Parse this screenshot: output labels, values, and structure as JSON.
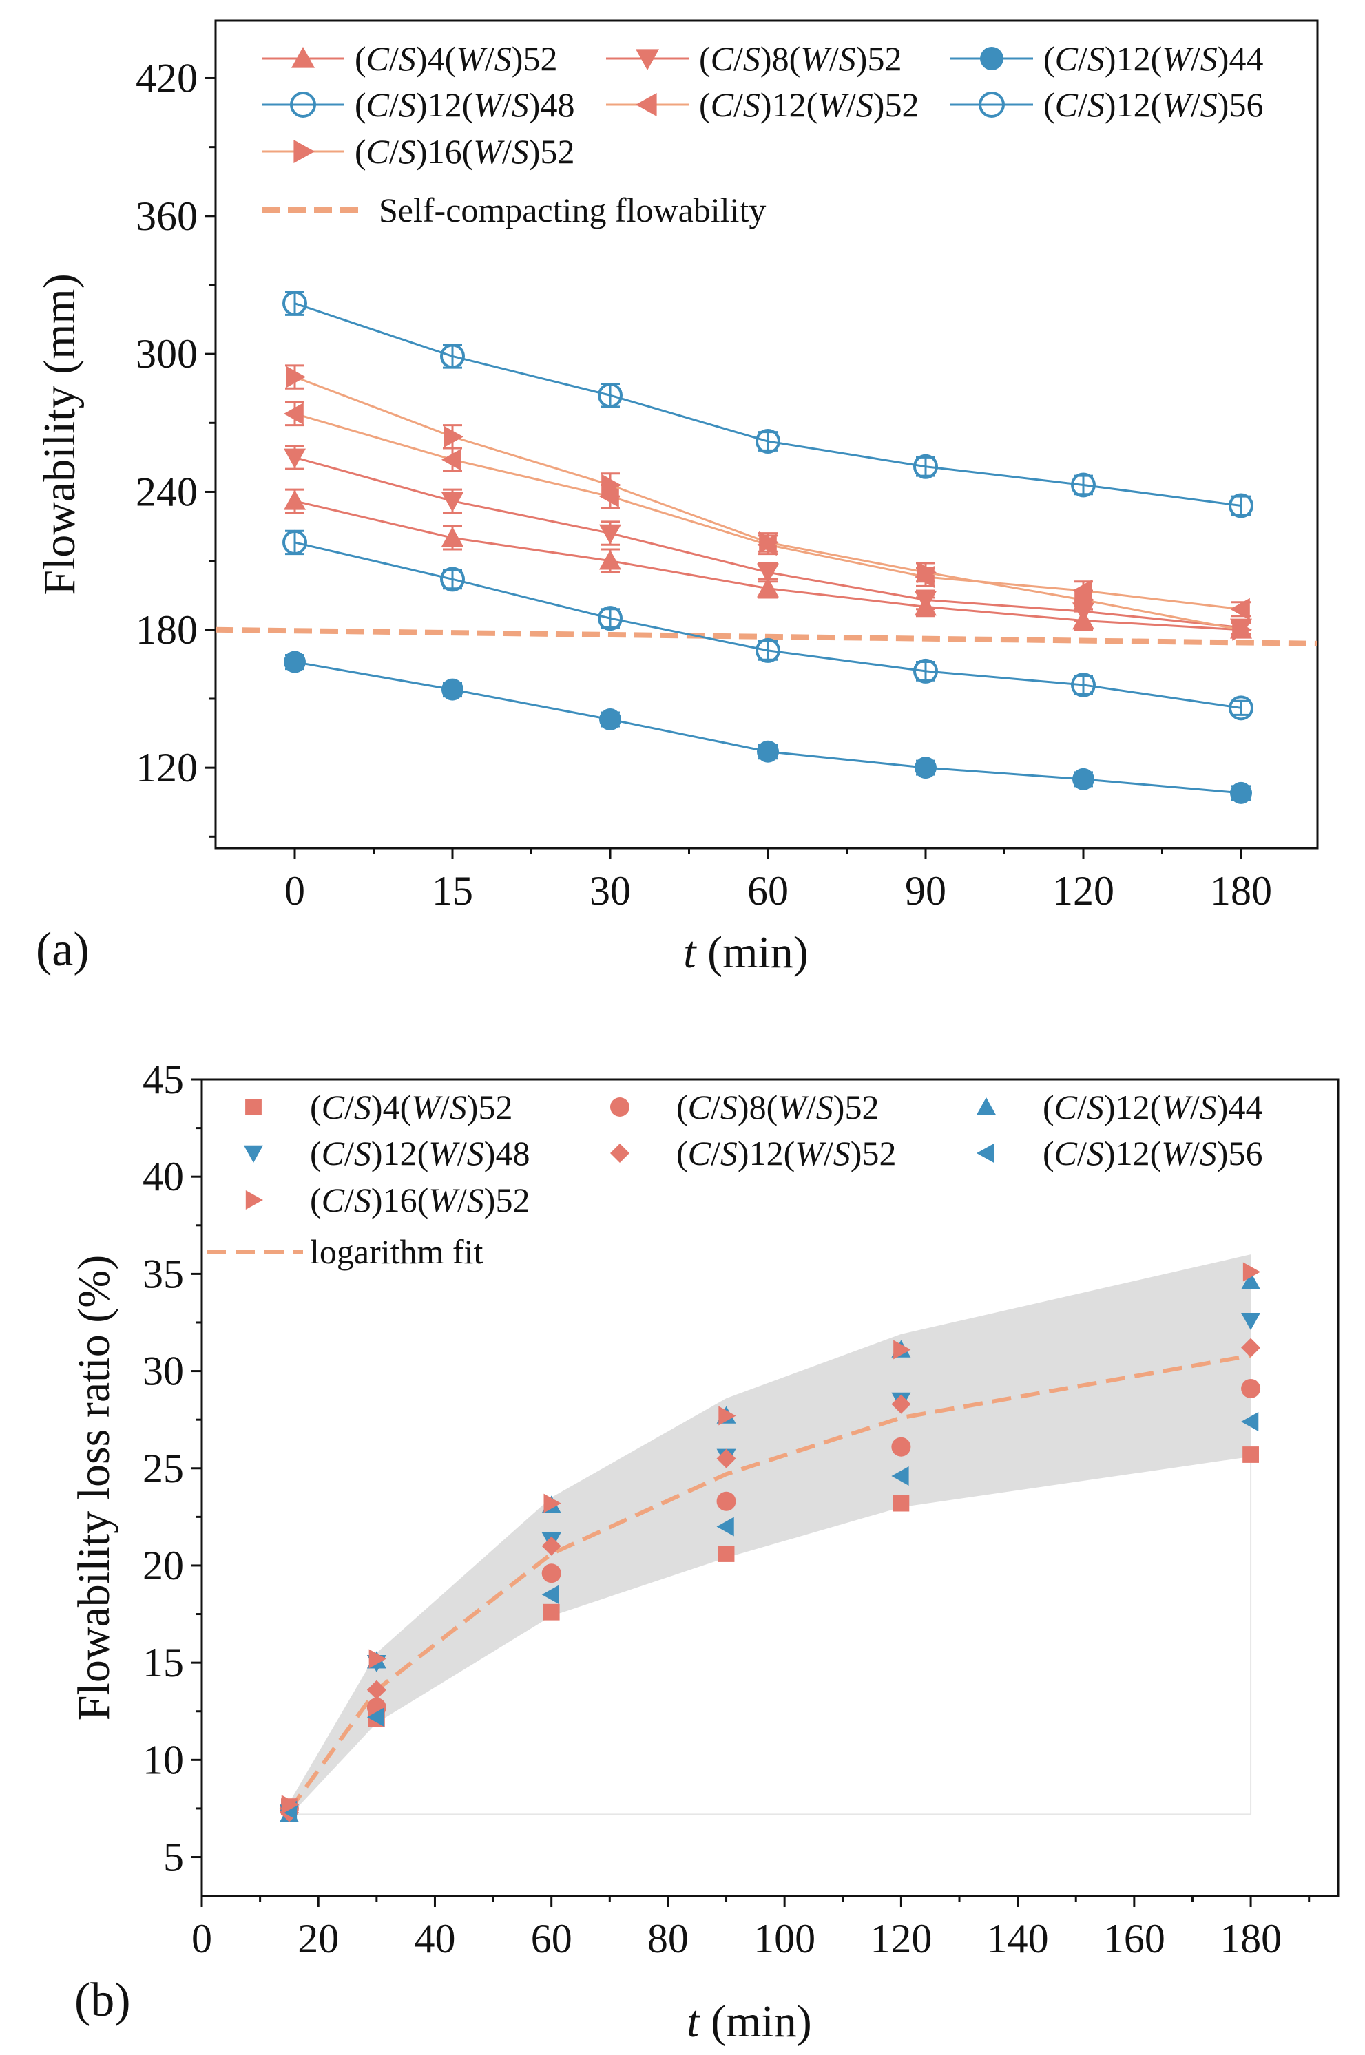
{
  "chart_data": [
    {
      "panel_label": "(a)",
      "type": "line",
      "xlabel_italic": "t",
      "xlabel_rest": " (min)",
      "ylabel": "Flowability (mm)",
      "categories": [
        "0",
        "15",
        "30",
        "60",
        "90",
        "120",
        "180"
      ],
      "ylim": [
        85,
        445
      ],
      "yticks": [
        120,
        180,
        240,
        300,
        360,
        420
      ],
      "grid": false,
      "legend_position": "top",
      "series": [
        {
          "prefix": "(C/S)4(W/S)52",
          "name": "(C/S)4(W/S)52",
          "marker": "triangle-up",
          "filled": true,
          "color": "#e4786c",
          "values": [
            236,
            220,
            210,
            198,
            190,
            184,
            180
          ],
          "err": [
            5,
            5,
            5,
            4,
            4,
            4,
            3
          ]
        },
        {
          "name": "(C/S)8(W/S)52",
          "marker": "triangle-down",
          "filled": true,
          "color": "#e4786c",
          "values": [
            255,
            236,
            222,
            205,
            193,
            188,
            181
          ],
          "err": [
            5,
            5,
            5,
            4,
            4,
            4,
            3
          ]
        },
        {
          "name": "(C/S)12(W/S)44",
          "marker": "circle",
          "filled": true,
          "color": "#3d8ebd",
          "values": [
            166,
            154,
            141,
            127,
            120,
            115,
            109
          ],
          "err": [
            3,
            3,
            3,
            3,
            3,
            3,
            3
          ]
        },
        {
          "name": "(C/S)12(W/S)48",
          "marker": "circle",
          "filled": false,
          "color": "#3d8ebd",
          "values": [
            218,
            202,
            185,
            171,
            162,
            156,
            146
          ],
          "err": [
            5,
            4,
            4,
            4,
            4,
            4,
            3
          ]
        },
        {
          "name": "(C/S)12(W/S)52",
          "marker": "triangle-left",
          "filled": true,
          "color": "#e4786c",
          "line_color": "#f0a47e",
          "values": [
            274,
            254,
            238,
            217,
            203,
            197,
            189
          ],
          "err": [
            5,
            5,
            5,
            4,
            4,
            4,
            3
          ]
        },
        {
          "name": "(C/S)12(W/S)56",
          "marker": "circle",
          "filled": false,
          "color": "#3d8ebd",
          "values": [
            322,
            299,
            282,
            262,
            251,
            243,
            234
          ],
          "err": [
            5,
            5,
            5,
            4,
            4,
            4,
            4
          ]
        },
        {
          "name": "(C/S)16(W/S)52",
          "marker": "triangle-right",
          "filled": true,
          "color": "#e4786c",
          "line_color": "#f0a47e",
          "values": [
            290,
            264,
            243,
            218,
            205,
            193,
            180
          ],
          "err": [
            5,
            5,
            5,
            4,
            4,
            4,
            3
          ]
        }
      ],
      "reference_line": {
        "label": "Self-compacting flowability",
        "start": 180,
        "end": 174,
        "color": "#f0a47e"
      }
    },
    {
      "panel_label": "(b)",
      "type": "scatter",
      "xlabel_italic": "t",
      "xlabel_rest": " (min)",
      "ylabel": "Flowability loss ratio (%)",
      "xlim": [
        0,
        195
      ],
      "ylim": [
        3,
        45
      ],
      "xticks": [
        0,
        20,
        40,
        60,
        80,
        100,
        120,
        140,
        160,
        180
      ],
      "yticks": [
        5,
        10,
        15,
        20,
        25,
        30,
        35,
        40,
        45
      ],
      "x": [
        15,
        30,
        60,
        90,
        120,
        180
      ],
      "grid": false,
      "legend_position": "top",
      "series": [
        {
          "name": "(C/S)4(W/S)52",
          "marker": "square",
          "color": "#e4786c",
          "values": [
            7.6,
            12.1,
            17.6,
            20.6,
            23.2,
            25.7
          ]
        },
        {
          "name": "(C/S)8(W/S)52",
          "marker": "circle",
          "color": "#e4786c",
          "values": [
            7.5,
            12.7,
            19.6,
            23.3,
            26.1,
            29.1
          ]
        },
        {
          "name": "(C/S)12(W/S)44",
          "marker": "triangle-up",
          "color": "#3d8ebd",
          "values": [
            7.2,
            15.1,
            23.1,
            27.7,
            31.1,
            34.6
          ]
        },
        {
          "name": "(C/S)12(W/S)48",
          "marker": "triangle-down",
          "color": "#3d8ebd",
          "values": [
            7.3,
            15.0,
            21.3,
            25.6,
            28.5,
            32.6
          ]
        },
        {
          "name": "(C/S)12(W/S)52",
          "marker": "diamond",
          "color": "#e4786c",
          "values": [
            7.3,
            13.6,
            21.0,
            25.5,
            28.3,
            31.2
          ]
        },
        {
          "name": "(C/S)12(W/S)56",
          "marker": "triangle-left",
          "color": "#3d8ebd",
          "values": [
            7.4,
            12.2,
            18.5,
            22.0,
            24.6,
            27.4
          ]
        },
        {
          "name": "(C/S)16(W/S)52",
          "marker": "triangle-right",
          "color": "#e4786c",
          "values": [
            7.7,
            15.2,
            23.2,
            27.7,
            31.1,
            35.1
          ]
        }
      ],
      "fit": {
        "label": "logarithm fit",
        "x": [
          15,
          30,
          60,
          90,
          120,
          180
        ],
        "values": [
          7.4,
          13.6,
          20.6,
          24.7,
          27.6,
          30.8
        ],
        "color": "#f0a47e"
      },
      "band": {
        "x": [
          15,
          30,
          60,
          90,
          120,
          180
        ],
        "upper": [
          7.8,
          15.5,
          23.5,
          28.6,
          31.9,
          36.0
        ],
        "lower": [
          7.1,
          11.9,
          17.4,
          20.4,
          23.0,
          25.6
        ],
        "color": "#dcdcdc"
      }
    }
  ]
}
